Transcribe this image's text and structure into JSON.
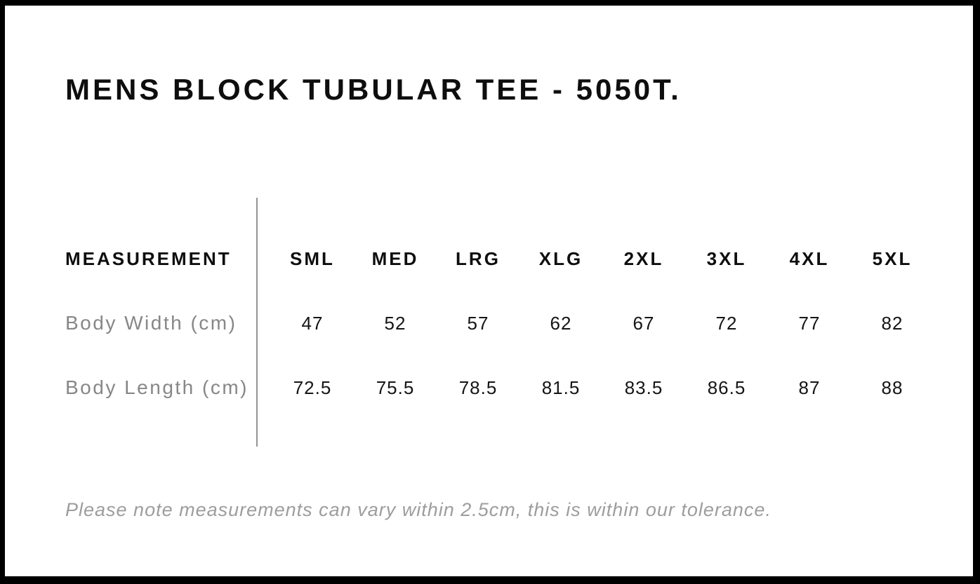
{
  "page": {
    "title": "MENS BLOCK TUBULAR TEE - 5050T.",
    "note": "Please note measurements can vary within 2.5cm, this is within our tolerance."
  },
  "size_chart": {
    "measurement_header": "MEASUREMENT",
    "sizes": [
      "SML",
      "MED",
      "LRG",
      "XLG",
      "2XL",
      "3XL",
      "4XL",
      "5XL"
    ],
    "rows": [
      {
        "label": "Body Width (cm)",
        "values": [
          "47",
          "52",
          "57",
          "62",
          "67",
          "72",
          "77",
          "82"
        ]
      },
      {
        "label": "Body Length (cm)",
        "values": [
          "72.5",
          "75.5",
          "78.5",
          "81.5",
          "83.5",
          "86.5",
          "87",
          "88"
        ]
      }
    ]
  },
  "colors": {
    "frame_border": "#000000",
    "heading_text": "#0e0e0e",
    "value_text": "#151515",
    "label_text": "#878787",
    "note_text": "#9d9d9d",
    "divider": "#949494"
  }
}
